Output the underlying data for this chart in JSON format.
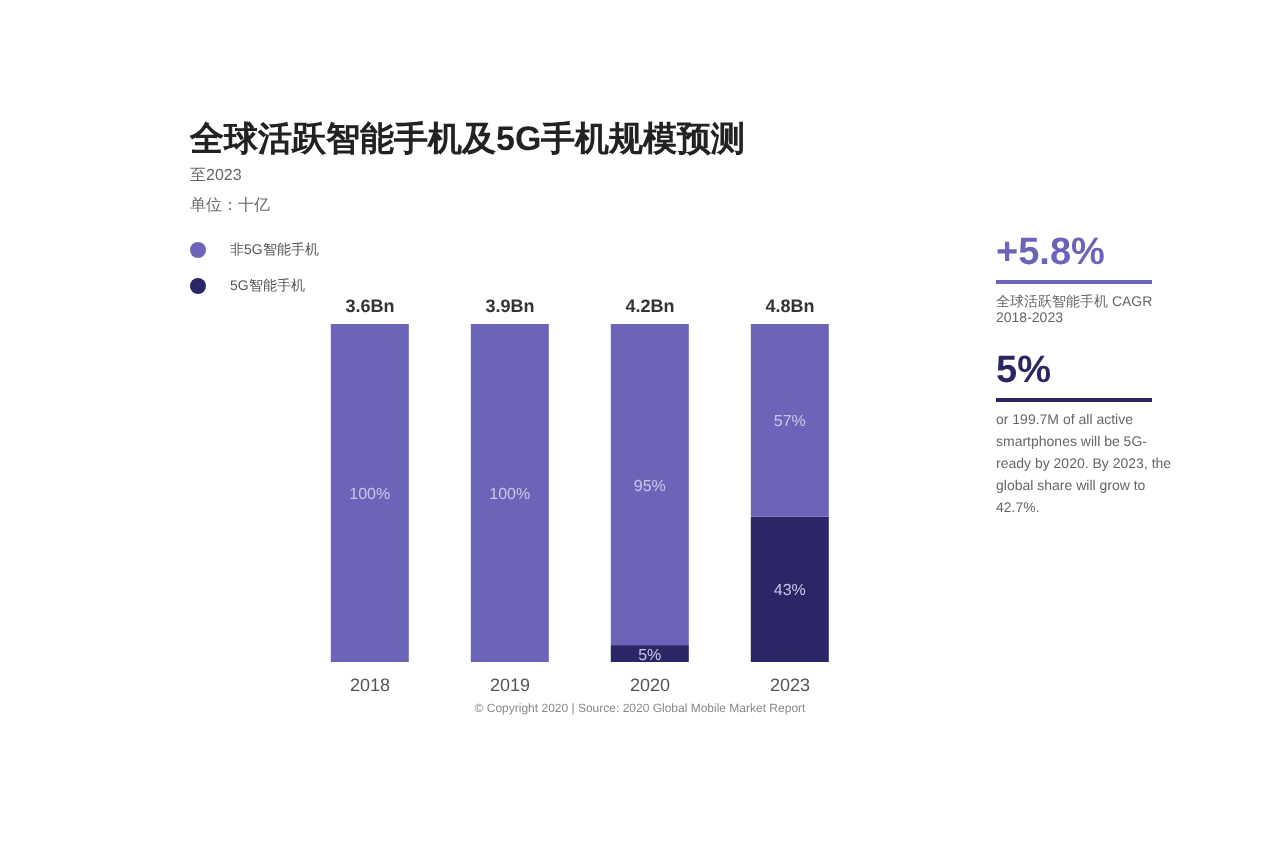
{
  "chart_data": {
    "type": "bar",
    "title": "全球活跃智能手机及5G手机规模预测",
    "subtitle": "至2023",
    "categories": [
      "2018",
      "2019",
      "2020",
      "2023"
    ],
    "stacked": true,
    "legend": "top left",
    "ylim": [
      0,
      100
    ],
    "series": [
      {
        "name": "5G智能手机",
        "color": "#2b2666",
        "values": [
          0,
          0,
          5,
          43
        ],
        "value_labels": [
          null,
          null,
          "5%",
          "43%"
        ]
      },
      {
        "name": "非5G智能手机",
        "color": "#6c64b8",
        "values": [
          100,
          100,
          95,
          57
        ],
        "value_labels": [
          "100%",
          "100%",
          "95%",
          "57%"
        ]
      }
    ],
    "annotations": [
      "单位：十亿",
      "+5.8%",
      "全球活跃智能手机 CAGR 2018-2023",
      "5%",
      "or 199.7M of all active smartphones will be 5G-ready by 2020. By 2023, the global share will grow to 42.7%.",
      "© Copyright 2020 | Source: 2020 Global Mobile Market Report",
      {
        "text": "3.6Bn",
        "x": "2018",
        "y": 100
      },
      {
        "text": "3.9Bn",
        "x": "2019",
        "y": 100
      },
      {
        "text": "4.2Bn",
        "x": "2020",
        "y": 100
      },
      {
        "text": "4.8Bn",
        "x": "2023",
        "y": 100
      }
    ]
  }
}
